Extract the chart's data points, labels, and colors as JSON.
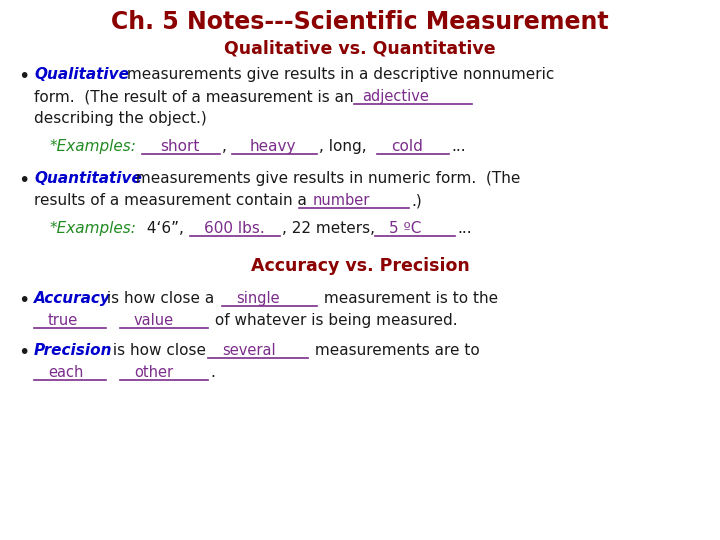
{
  "title": "Ch. 5 Notes---Scientific Measurement",
  "title_color": "#8B0000",
  "subtitle1": "Qualitative vs. Quantitative",
  "subtitle1_color": "#8B0000",
  "subtitle2": "Accuracy vs. Precision",
  "subtitle2_color": "#8B0000",
  "bg_color": "#FFFFFF",
  "blue": "#0000CD",
  "purple": "#7B2D8B",
  "green": "#228B22",
  "black": "#1A1A1A"
}
